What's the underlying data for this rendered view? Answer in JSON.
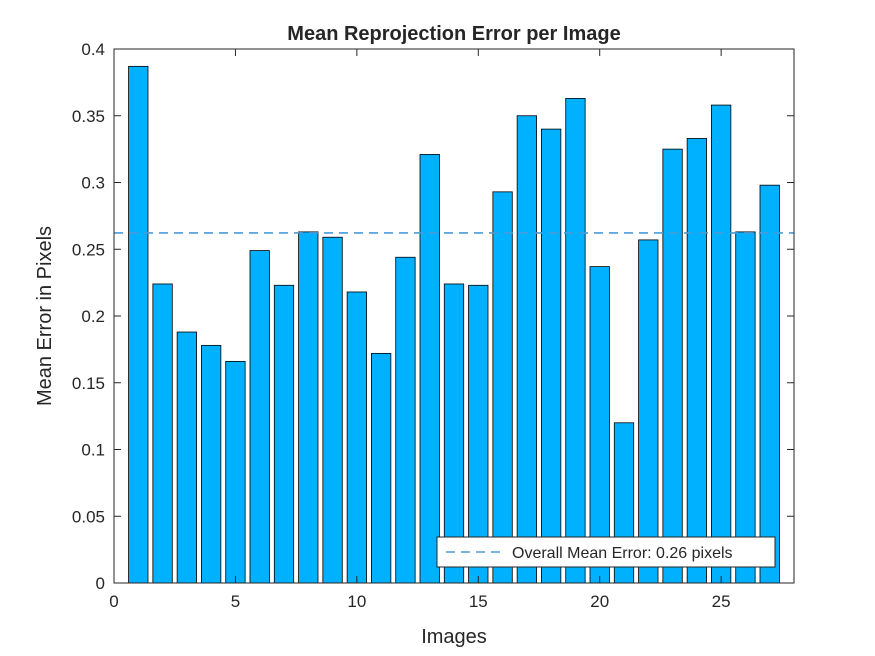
{
  "chart_data": {
    "type": "bar",
    "title": "Mean Reprojection Error per Image",
    "xlabel": "Images",
    "ylabel": "Mean Error in Pixels",
    "xlim": [
      0,
      28
    ],
    "ylim": [
      0,
      0.4
    ],
    "xticks": [
      0,
      5,
      10,
      15,
      20,
      25
    ],
    "yticks": [
      0,
      0.05,
      0.1,
      0.15,
      0.2,
      0.25,
      0.3,
      0.35,
      0.4
    ],
    "ytick_labels": [
      "0",
      "0.05",
      "0.1",
      "0.15",
      "0.2",
      "0.25",
      "0.3",
      "0.35",
      "0.4"
    ],
    "x": [
      1,
      2,
      3,
      4,
      5,
      6,
      7,
      8,
      9,
      10,
      11,
      12,
      13,
      14,
      15,
      16,
      17,
      18,
      19,
      20,
      21,
      22,
      23,
      24,
      25,
      26,
      27
    ],
    "values": [
      0.387,
      0.224,
      0.188,
      0.178,
      0.166,
      0.249,
      0.223,
      0.263,
      0.259,
      0.218,
      0.172,
      0.244,
      0.321,
      0.224,
      0.223,
      0.293,
      0.35,
      0.34,
      0.363,
      0.237,
      0.12,
      0.257,
      0.325,
      0.333,
      0.358,
      0.263,
      0.298
    ],
    "bar_color": "#00b1ff",
    "mean_line": {
      "value": 0.2622,
      "color": "#4a9bd6"
    },
    "legend": {
      "label": "Overall Mean Error: 0.26 pixels",
      "placement": "bottom-right"
    },
    "grid": false
  }
}
